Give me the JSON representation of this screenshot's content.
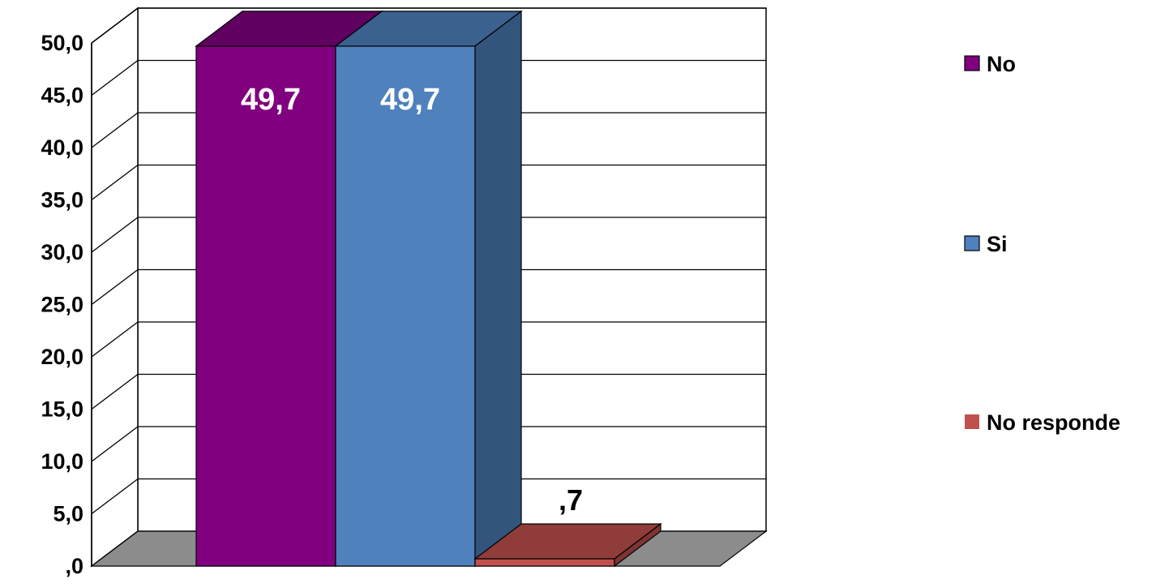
{
  "chart_data": {
    "type": "bar",
    "style": "3d",
    "ylim": [
      0,
      50
    ],
    "y_ticks": [
      ",0",
      "5,0",
      "10,0",
      "15,0",
      "20,0",
      "25,0",
      "30,0",
      "35,0",
      "40,0",
      "45,0",
      "50,0"
    ],
    "grid": true,
    "legend_position": "right",
    "series": [
      {
        "name": "No",
        "value": 49.7,
        "data_label": "49,7",
        "color": "#800080"
      },
      {
        "name": "Si",
        "value": 49.7,
        "data_label": "49,7",
        "color": "#4f81bd"
      },
      {
        "name": "No responde",
        "value": 0.7,
        "data_label": ",7",
        "color": "#c0504d"
      }
    ]
  }
}
